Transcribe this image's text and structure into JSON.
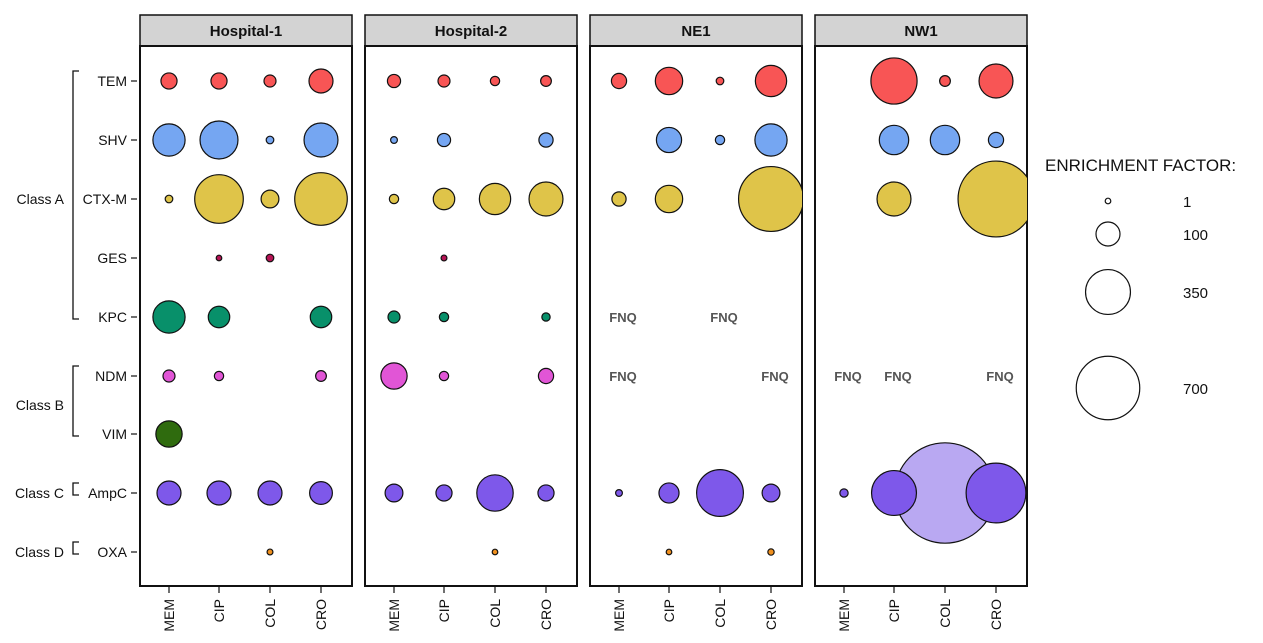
{
  "chart_data": {
    "type": "scatter",
    "subtype": "bubble-matrix",
    "panels": [
      "Hospital-1",
      "Hospital-2",
      "NE1",
      "NW1"
    ],
    "antibiotics": [
      "MEM",
      "CIP",
      "COL",
      "CRO"
    ],
    "genes": [
      "TEM",
      "SHV",
      "CTX-M",
      "GES",
      "KPC",
      "NDM",
      "VIM",
      "AmpC",
      "OXA"
    ],
    "gene_classes": [
      {
        "name": "Class A",
        "genes": [
          "TEM",
          "SHV",
          "CTX-M",
          "GES",
          "KPC"
        ]
      },
      {
        "name": "Class B",
        "genes": [
          "NDM",
          "VIM"
        ]
      },
      {
        "name": "Class C",
        "genes": [
          "AmpC"
        ]
      },
      {
        "name": "Class D",
        "genes": [
          "OXA"
        ]
      }
    ],
    "gene_colors": {
      "TEM": "#f85555",
      "SHV": "#75a6f2",
      "CTX-M": "#dfc449",
      "GES": "#b51455",
      "KPC": "#08906a",
      "NDM": "#e155d6",
      "VIM": "#2f6b0e",
      "AmpC": "#7e58ea",
      "OXA": "#f0901e"
    },
    "highlight_color": "#b9a8f2",
    "size_metric": "enrichment factor",
    "values": {
      "Hospital-1": {
        "TEM": [
          45,
          45,
          25,
          100
        ],
        "SHV": [
          180,
          250,
          10,
          200
        ],
        "CTX-M": [
          10,
          410,
          55,
          480
        ],
        "GES": [
          null,
          5,
          10,
          null
        ],
        "KPC": [
          180,
          80,
          null,
          80
        ],
        "NDM": [
          25,
          15,
          null,
          20
        ],
        "VIM": [
          120,
          null,
          null,
          null
        ],
        "AmpC": [
          100,
          100,
          100,
          90
        ],
        "OXA": [
          null,
          null,
          6,
          null
        ]
      },
      "Hospital-2": {
        "TEM": [
          30,
          25,
          15,
          20
        ],
        "SHV": [
          8,
          30,
          null,
          35
        ],
        "CTX-M": [
          15,
          80,
          170,
          200
        ],
        "GES": [
          null,
          6,
          null,
          null
        ],
        "KPC": [
          25,
          15,
          null,
          12
        ],
        "NDM": [
          120,
          15,
          null,
          40
        ],
        "VIM": [
          null,
          null,
          null,
          null
        ],
        "AmpC": [
          55,
          45,
          230,
          45
        ],
        "OXA": [
          null,
          null,
          4,
          null
        ]
      },
      "NE1": {
        "TEM": [
          40,
          130,
          10,
          170
        ],
        "SHV": [
          null,
          110,
          15,
          180
        ],
        "CTX-M": [
          35,
          130,
          null,
          730
        ],
        "GES": [
          null,
          null,
          null,
          null
        ],
        "KPC": [
          null,
          null,
          null,
          null
        ],
        "NDM": [
          null,
          null,
          null,
          null
        ],
        "VIM": [
          null,
          null,
          null,
          null
        ],
        "AmpC": [
          8,
          70,
          380,
          55
        ],
        "OXA": [
          null,
          5,
          null,
          7
        ]
      },
      "NW1": {
        "TEM": [
          null,
          370,
          20,
          200
        ],
        "SHV": [
          null,
          150,
          150,
          40
        ],
        "CTX-M": [
          null,
          200,
          null,
          1000
        ],
        "GES": [
          null,
          null,
          null,
          null
        ],
        "KPC": [
          null,
          null,
          null,
          null
        ],
        "NDM": [
          null,
          null,
          null,
          null
        ],
        "VIM": [
          null,
          null,
          null,
          null
        ],
        "AmpC": [
          12,
          350,
          1750,
          620
        ],
        "OXA": [
          null,
          null,
          null,
          null
        ]
      }
    },
    "highlighted_cells": [
      {
        "panel": "NW1",
        "gene": "AmpC",
        "antibiotic": "COL"
      }
    ],
    "annotations": [
      {
        "panel": "NE1",
        "gene": "KPC",
        "antibiotic": "MEM",
        "text": "FNQ"
      },
      {
        "panel": "NE1",
        "gene": "KPC",
        "antibiotic": "COL",
        "text": "FNQ"
      },
      {
        "panel": "NE1",
        "gene": "NDM",
        "antibiotic": "MEM",
        "text": "FNQ"
      },
      {
        "panel": "NE1",
        "gene": "NDM",
        "antibiotic": "CRO",
        "text": "FNQ"
      },
      {
        "panel": "NW1",
        "gene": "NDM",
        "antibiotic": "MEM",
        "text": "FNQ"
      },
      {
        "panel": "NW1",
        "gene": "NDM",
        "antibiotic": "CIP",
        "text": "FNQ"
      },
      {
        "panel": "NW1",
        "gene": "NDM",
        "antibiotic": "CRO",
        "text": "FNQ"
      }
    ],
    "legend": {
      "title": "ENRICHMENT FACTOR:",
      "entries": [
        {
          "value": 1,
          "label": "1"
        },
        {
          "value": 100,
          "label": "100"
        },
        {
          "value": 350,
          "label": "350"
        },
        {
          "value": 700,
          "label": "700"
        }
      ]
    }
  }
}
